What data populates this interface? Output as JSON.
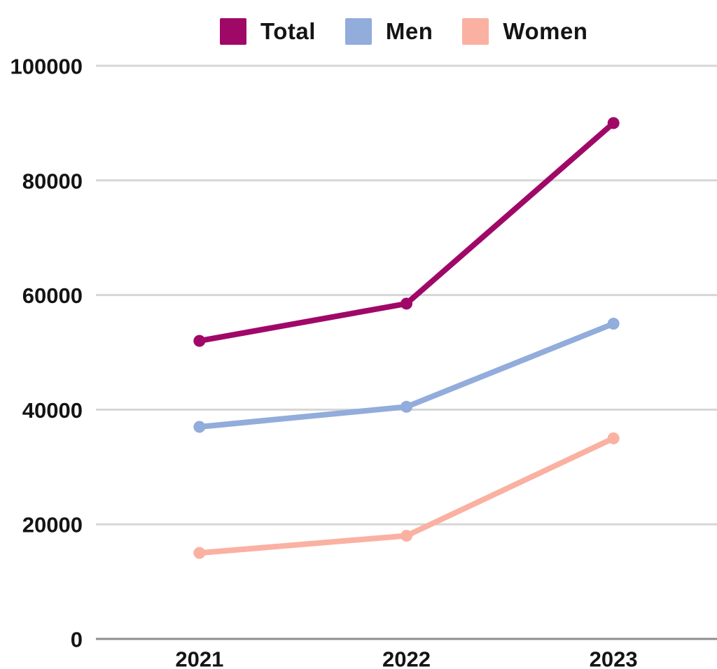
{
  "chart_data": {
    "type": "line",
    "title": "",
    "categories": [
      "2021",
      "2022",
      "2023"
    ],
    "series": [
      {
        "name": "Total",
        "color": "#A00868",
        "values": [
          52000,
          58500,
          90000
        ]
      },
      {
        "name": "Men",
        "color": "#92ACDB",
        "values": [
          37000,
          40500,
          55000
        ]
      },
      {
        "name": "Women",
        "color": "#FAB1A2",
        "values": [
          15000,
          18000,
          35000
        ]
      }
    ],
    "ylim": [
      0,
      100000
    ],
    "yticks": [
      0,
      20000,
      40000,
      60000,
      80000,
      100000
    ],
    "ytick_labels": [
      "0",
      "20000",
      "40000",
      "60000",
      "80000",
      "100000"
    ],
    "xlabel": "",
    "ylabel": "",
    "grid": "horizontal",
    "legend_position": "top",
    "colors": {
      "gridline": "#D6D6D6",
      "axis_line": "#8E8E8E",
      "text": "#141414",
      "background": "#FFFFFF"
    }
  }
}
